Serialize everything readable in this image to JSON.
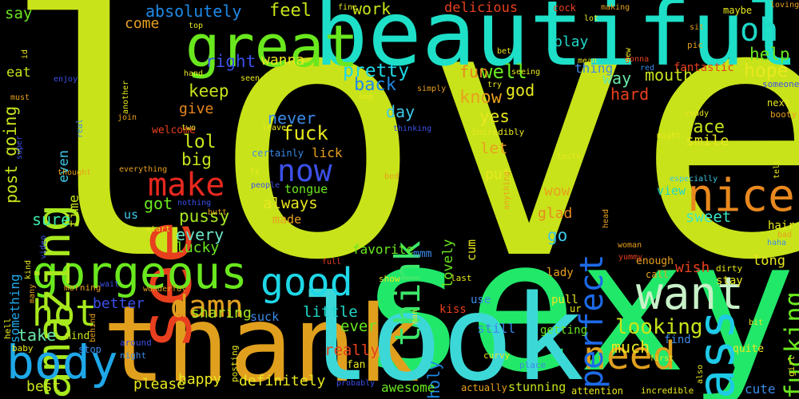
{
  "wordcloud": {
    "background": "#000000",
    "words": [
      {
        "text": "love",
        "color": "#c8e31a"
      },
      {
        "text": "sexy",
        "color": "#22e86a"
      },
      {
        "text": "beautiful",
        "color": "#1ee0c8"
      },
      {
        "text": "thank",
        "color": "#e0a01e"
      },
      {
        "text": "look",
        "color": "#3cd8d8"
      },
      {
        "text": "see",
        "color": "#e8401e"
      },
      {
        "text": "gorgeous",
        "color": "#6ae81e"
      },
      {
        "text": "great",
        "color": "#6ae81e"
      },
      {
        "text": "nice",
        "color": "#e8881e"
      },
      {
        "text": "amazing",
        "color": "#a8e81e"
      },
      {
        "text": "body",
        "color": "#1ea8e8"
      },
      {
        "text": "want",
        "color": "#c8f0c8"
      },
      {
        "text": "need",
        "color": "#e0a01e"
      },
      {
        "text": "good",
        "color": "#1ed8e8"
      },
      {
        "text": "ass",
        "color": "#1ecae8"
      },
      {
        "text": "hot",
        "color": "#a8e81e"
      },
      {
        "text": "damn",
        "color": "#e0a01e"
      },
      {
        "text": "now",
        "color": "#3c50e8"
      },
      {
        "text": "make",
        "color": "#e8281e"
      },
      {
        "text": "think",
        "color": "#3ce86a"
      },
      {
        "text": "perfect",
        "color": "#1e6ae8"
      },
      {
        "text": "oh",
        "color": "#1ed8c8"
      },
      {
        "text": "fucking",
        "color": "#6ae81e"
      },
      {
        "text": "looking",
        "color": "#c8e31a"
      },
      {
        "text": "absolutely",
        "color": "#1e8ae8"
      },
      {
        "text": "feel",
        "color": "#c8e31a"
      },
      {
        "text": "work",
        "color": "#c8e31a"
      },
      {
        "text": "delicious",
        "color": "#e8401e"
      },
      {
        "text": "mouth",
        "color": "#c8e31a"
      },
      {
        "text": "say",
        "color": "#6ae81e"
      },
      {
        "text": "going",
        "color": "#c8e31a"
      },
      {
        "text": "come",
        "color": "#e8a01e"
      },
      {
        "text": "right",
        "color": "#3c50e8"
      },
      {
        "text": "wanna",
        "color": "#e8e81e"
      },
      {
        "text": "pretty",
        "color": "#1ed8e8"
      },
      {
        "text": "well",
        "color": "#6ae81e"
      },
      {
        "text": "fun",
        "color": "#e8881e"
      },
      {
        "text": "play",
        "color": "#1ed8c8"
      },
      {
        "text": "help",
        "color": "#6ae81e"
      },
      {
        "text": "hope",
        "color": "#e8e81e"
      },
      {
        "text": "way",
        "color": "#6ae8a8"
      },
      {
        "text": "back",
        "color": "#1e8ae8"
      },
      {
        "text": "know",
        "color": "#e8a01e"
      },
      {
        "text": "god",
        "color": "#e8e81e"
      },
      {
        "text": "keep",
        "color": "#c8e31a"
      },
      {
        "text": "hard",
        "color": "#e8401e"
      },
      {
        "text": "give",
        "color": "#e8881e"
      },
      {
        "text": "day",
        "color": "#3cc8e8"
      },
      {
        "text": "yes",
        "color": "#e8e81e"
      },
      {
        "text": "never",
        "color": "#3c8ae8"
      },
      {
        "text": "fuck",
        "color": "#e8e81e"
      },
      {
        "text": "lol",
        "color": "#c8e31a"
      },
      {
        "text": "big",
        "color": "#c8e31a"
      },
      {
        "text": "face",
        "color": "#c8e31a"
      },
      {
        "text": "smile",
        "color": "#e8e81e"
      },
      {
        "text": "post",
        "color": "#c8e31a"
      },
      {
        "text": "time",
        "color": "#c8e31a"
      },
      {
        "text": "even",
        "color": "#3cc8e8"
      },
      {
        "text": "eat",
        "color": "#c8e31a"
      },
      {
        "text": "let",
        "color": "#e8a01e"
      },
      {
        "text": "lick",
        "color": "#e8a01e"
      },
      {
        "text": "put",
        "color": "#e8e81e"
      },
      {
        "text": "wow",
        "color": "#e8a01e"
      },
      {
        "text": "lovely",
        "color": "#6ae81e"
      },
      {
        "text": "always",
        "color": "#e8e81e"
      },
      {
        "text": "got",
        "color": "#6ae81e"
      },
      {
        "text": "pussy",
        "color": "#a8e81e"
      },
      {
        "text": "sure",
        "color": "#3ce8a8"
      },
      {
        "text": "every",
        "color": "#6ae8c8"
      },
      {
        "text": "glad",
        "color": "#e8881e"
      },
      {
        "text": "go",
        "color": "#3cc8e8"
      },
      {
        "text": "sweet",
        "color": "#3ce8c8"
      },
      {
        "text": "view",
        "color": "#1ed8c8"
      },
      {
        "text": "cum",
        "color": "#e8e81e"
      },
      {
        "text": "made",
        "color": "#e8a01e"
      },
      {
        "text": "tongue",
        "color": "#6ae81e"
      },
      {
        "text": "wish",
        "color": "#e8401e"
      },
      {
        "text": "long",
        "color": "#e8e81e"
      },
      {
        "text": "hair",
        "color": "#e8e81e"
      },
      {
        "text": "lucky",
        "color": "#6ae81e"
      },
      {
        "text": "something",
        "color": "#1ea8e8"
      },
      {
        "text": "us",
        "color": "#3cc8e8"
      },
      {
        "text": "favorite",
        "color": "#6ae81e"
      },
      {
        "text": "mmm",
        "color": "#3c8ae8"
      },
      {
        "text": "sharing",
        "color": "#a8e81e"
      },
      {
        "text": "better",
        "color": "#3c50e8"
      },
      {
        "text": "little",
        "color": "#1ed8c8"
      },
      {
        "text": "ever",
        "color": "#6ae81e"
      },
      {
        "text": "take",
        "color": "#6ae8a8"
      },
      {
        "text": "really",
        "color": "#e8401e"
      },
      {
        "text": "much",
        "color": "#e8e81e"
      },
      {
        "text": "holy",
        "color": "#1e8ae8"
      },
      {
        "text": "happy",
        "color": "#e8e81e"
      },
      {
        "text": "please",
        "color": "#e8e81e"
      },
      {
        "text": "definitely",
        "color": "#e8e81e"
      },
      {
        "text": "best",
        "color": "#c8e31a"
      },
      {
        "text": "awesome",
        "color": "#6ae81e"
      },
      {
        "text": "suck",
        "color": "#3c8ae8"
      },
      {
        "text": "mind",
        "color": "#c8e31a"
      },
      {
        "text": "still",
        "color": "#3c8ae8"
      },
      {
        "text": "getting",
        "color": "#6ae81e"
      },
      {
        "text": "stunning",
        "color": "#c8e31a"
      },
      {
        "text": "cute",
        "color": "#3c8ae8"
      },
      {
        "text": "fantastic",
        "color": "#e8401e"
      },
      {
        "text": "thing",
        "color": "#3c8ae8"
      },
      {
        "text": "cock",
        "color": "#e8401e"
      },
      {
        "text": "making",
        "color": "#e8a01e"
      },
      {
        "text": "maybe",
        "color": "#e8e81e"
      },
      {
        "text": "loving",
        "color": "#e8a01e"
      },
      {
        "text": "sit",
        "color": "#e8a01e"
      },
      {
        "text": "pic",
        "color": "#e8a01e"
      },
      {
        "text": "next",
        "color": "#e8e81e"
      },
      {
        "text": "someone",
        "color": "#3c50e8"
      },
      {
        "text": "booty",
        "color": "#e8a01e"
      },
      {
        "text": "ready",
        "color": "#e8e81e"
      },
      {
        "text": "might",
        "color": "#e8e81e"
      },
      {
        "text": "especially",
        "color": "#3cc8e8"
      },
      {
        "text": "incredibly",
        "color": "#e8e81e"
      },
      {
        "text": "welcome",
        "color": "#e8401e"
      },
      {
        "text": "certainly",
        "color": "#3c8ae8"
      },
      {
        "text": "nothing",
        "color": "#3c50e8"
      },
      {
        "text": "people",
        "color": "#3c50e8"
      },
      {
        "text": "start",
        "color": "#e8e81e"
      },
      {
        "text": "video",
        "color": "#3c50e8"
      },
      {
        "text": "many",
        "color": "#e8a01e"
      },
      {
        "text": "morning",
        "color": "#e8a01e"
      },
      {
        "text": "wait",
        "color": "#3c50e8"
      },
      {
        "text": "wonderful",
        "color": "#e8a01e"
      },
      {
        "text": "hell",
        "color": "#e8e81e"
      },
      {
        "text": "baby",
        "color": "#e8e81e"
      },
      {
        "text": "stop",
        "color": "#3c8ae8"
      },
      {
        "text": "around",
        "color": "#3c50e8"
      },
      {
        "text": "night",
        "color": "#3c8ae8"
      },
      {
        "text": "posting",
        "color": "#e8e81e"
      },
      {
        "text": "fan",
        "color": "#e8e81e"
      },
      {
        "text": "show",
        "color": "#e8e81e"
      },
      {
        "text": "last",
        "color": "#e8e81e"
      },
      {
        "text": "use",
        "color": "#3c8ae8"
      },
      {
        "text": "kiss",
        "color": "#e8401e"
      },
      {
        "text": "actually",
        "color": "#e8a01e"
      },
      {
        "text": "attention",
        "color": "#e8e81e"
      },
      {
        "text": "incredible",
        "color": "#e8e81e"
      },
      {
        "text": "first",
        "color": "#e8e81e"
      },
      {
        "text": "also",
        "color": "#e8e81e"
      },
      {
        "text": "girl",
        "color": "#e8e81e"
      },
      {
        "text": "quite",
        "color": "#e8e81e"
      },
      {
        "text": "find",
        "color": "#3c8ae8"
      },
      {
        "text": "lady",
        "color": "#e8a01e"
      },
      {
        "text": "pull",
        "color": "#e8e81e"
      },
      {
        "text": "ur",
        "color": "#e8e81e"
      },
      {
        "text": "place",
        "color": "#3c8ae8"
      },
      {
        "text": "curvy",
        "color": "#e8e81e"
      },
      {
        "text": "enough",
        "color": "#e8a01e"
      },
      {
        "text": "call",
        "color": "#e8a01e"
      },
      {
        "text": "dirty",
        "color": "#e8e81e"
      },
      {
        "text": "bit",
        "color": "#e8e81e"
      },
      {
        "text": "haha",
        "color": "#3c8ae8"
      },
      {
        "text": "bad",
        "color": "#e8a01e"
      },
      {
        "text": "stay",
        "color": "#e8e81e"
      },
      {
        "text": "tell",
        "color": "#e8e81e"
      },
      {
        "text": "taste",
        "color": "#e8e81e"
      },
      {
        "text": "yummy",
        "color": "#e8401e"
      },
      {
        "text": "woman",
        "color": "#e8a01e"
      },
      {
        "text": "head",
        "color": "#e8a01e"
      },
      {
        "text": "full",
        "color": "#e8401e"
      },
      {
        "text": "anything",
        "color": "#e8a01e"
      },
      {
        "text": "bed",
        "color": "#e8a01e"
      },
      {
        "text": "man",
        "color": "#e8e81e"
      },
      {
        "text": "probably",
        "color": "#3c50e8"
      },
      {
        "text": "kind",
        "color": "#e8e81e"
      },
      {
        "text": "behind",
        "color": "#e8a01e"
      },
      {
        "text": "thinking",
        "color": "#3c50e8"
      },
      {
        "text": "leave",
        "color": "#e8e81e"
      },
      {
        "text": "two",
        "color": "#e8e81e"
      },
      {
        "text": "ty",
        "color": "#e8e81e"
      },
      {
        "text": "join",
        "color": "#e8a01e"
      },
      {
        "text": "everything",
        "color": "#e8a01e"
      },
      {
        "text": "thought",
        "color": "#e8a01e"
      },
      {
        "text": "super",
        "color": "#3c50e8"
      },
      {
        "text": "must",
        "color": "#e8a01e"
      },
      {
        "text": "enjoy",
        "color": "#3c50e8"
      },
      {
        "text": "real",
        "color": "#3c8ae8"
      },
      {
        "text": "another",
        "color": "#e8e81e"
      },
      {
        "text": "id",
        "color": "#e8e81e"
      },
      {
        "text": "top",
        "color": "#e8e81e"
      },
      {
        "text": "fine",
        "color": "#e8e81e"
      },
      {
        "text": "hand",
        "color": "#e8e81e"
      },
      {
        "text": "butt",
        "color": "#e8a01e"
      },
      {
        "text": "seen",
        "color": "#e8e81e"
      },
      {
        "text": "simply",
        "color": "#e8a01e"
      },
      {
        "text": "omg",
        "color": "#e8e81e"
      },
      {
        "text": "try",
        "color": "#e8e81e"
      },
      {
        "text": "seeing",
        "color": "#e8e81e"
      },
      {
        "text": "bet",
        "color": "#e8e81e"
      },
      {
        "text": "mean",
        "color": "#e8e81e"
      },
      {
        "text": "lot",
        "color": "#e8e81e"
      },
      {
        "text": "gonna",
        "color": "#e8401e"
      },
      {
        "text": "new",
        "color": "#e8e81e"
      },
      {
        "text": "red",
        "color": "#3c8ae8"
      }
    ]
  }
}
